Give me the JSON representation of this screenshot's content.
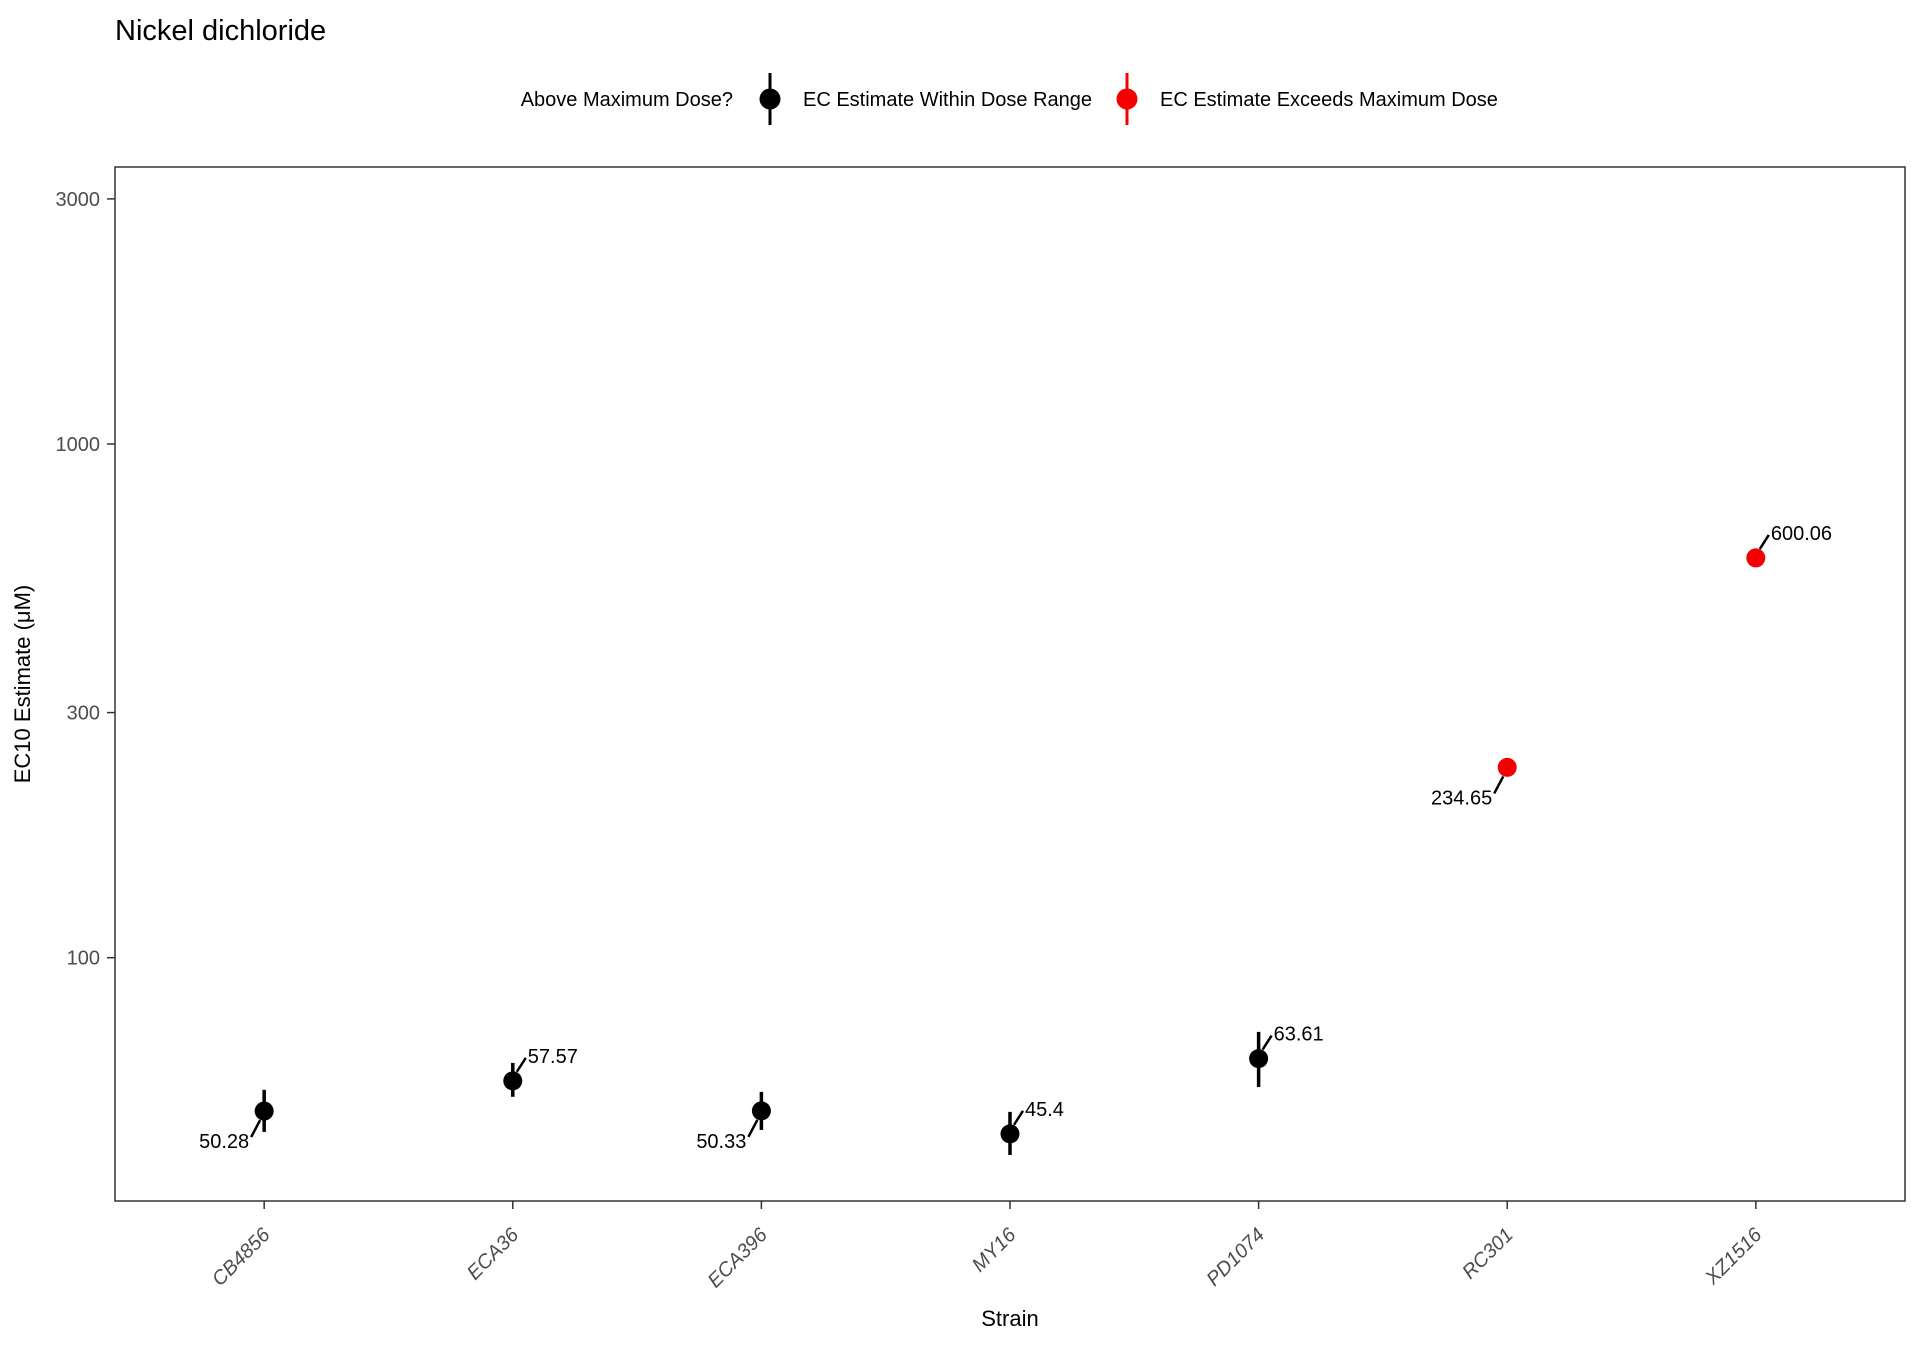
{
  "chart_data": {
    "type": "scatter",
    "title": "Nickel dichloride",
    "xlabel": "Strain",
    "ylabel": "EC10 Estimate (μM)",
    "y_scale": "log10",
    "ylim": [
      33.6,
      3461
    ],
    "yticks": [
      3000,
      1000,
      300,
      100
    ],
    "categories": [
      "CB4856",
      "ECA36",
      "ECA396",
      "MY16",
      "PD1074",
      "RC301",
      "XZ1516"
    ],
    "grid": "off",
    "legend": {
      "title": "Above Maximum Dose?",
      "position": "top",
      "entries": [
        {
          "id": "within",
          "label": "EC Estimate Within Dose Range",
          "color": "#000000"
        },
        {
          "id": "exceeds",
          "label": "EC Estimate Exceeds Maximum Dose",
          "color": "#F40000"
        }
      ]
    },
    "series": [
      {
        "name": "EC10 Estimate",
        "points": [
          {
            "strain": "CB4856",
            "value": 50.28,
            "label": "50.28",
            "ci_low": 45.8,
            "ci_high": 55.3,
            "exceeds_max_dose": false,
            "color": "#000000",
            "label_side": "below-left"
          },
          {
            "strain": "ECA36",
            "value": 57.57,
            "label": "57.57",
            "ci_low": 53.6,
            "ci_high": 62.4,
            "exceeds_max_dose": false,
            "color": "#000000",
            "label_side": "above-right"
          },
          {
            "strain": "ECA396",
            "value": 50.33,
            "label": "50.33",
            "ci_low": 46.2,
            "ci_high": 54.8,
            "exceeds_max_dose": false,
            "color": "#000000",
            "label_side": "below-left"
          },
          {
            "strain": "MY16",
            "value": 45.4,
            "label": "45.4",
            "ci_low": 41.3,
            "ci_high": 50.1,
            "exceeds_max_dose": false,
            "color": "#000000",
            "label_side": "above-right"
          },
          {
            "strain": "PD1074",
            "value": 63.61,
            "label": "63.61",
            "ci_low": 56.0,
            "ci_high": 71.7,
            "exceeds_max_dose": false,
            "color": "#000000",
            "label_side": "above-right"
          },
          {
            "strain": "RC301",
            "value": 234.65,
            "label": "234.65",
            "ci_low": null,
            "ci_high": null,
            "exceeds_max_dose": true,
            "color": "#F40000",
            "label_side": "below-left"
          },
          {
            "strain": "XZ1516",
            "value": 600.06,
            "label": "600.06",
            "ci_low": null,
            "ci_high": null,
            "exceeds_max_dose": true,
            "color": "#F40000",
            "label_side": "above-right"
          }
        ]
      }
    ]
  }
}
